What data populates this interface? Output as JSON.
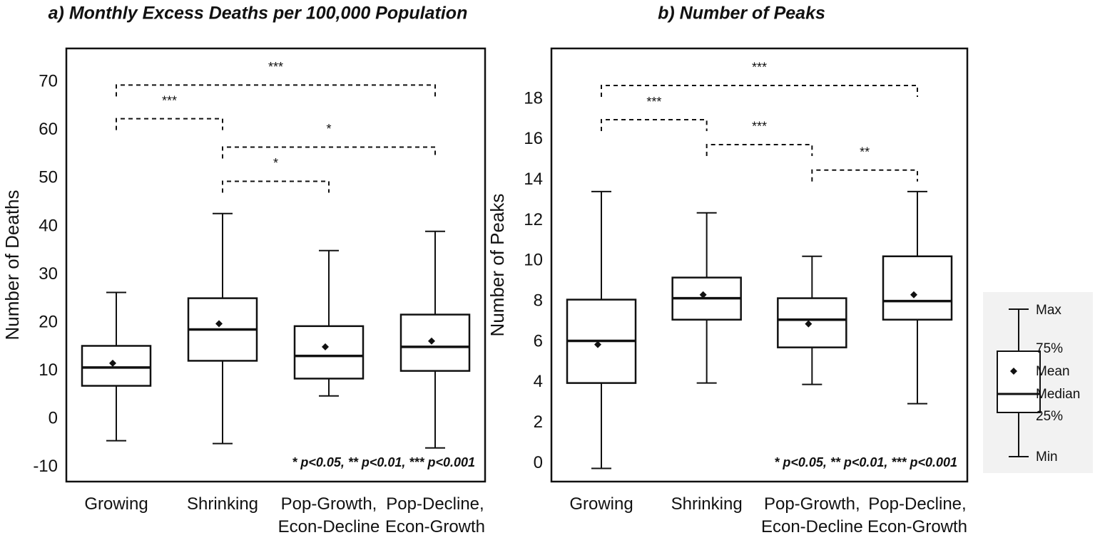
{
  "chart_data": [
    {
      "type": "box",
      "title": "a) Monthly Excess Deaths per 100,000 Population",
      "y_label": "Number of Deaths",
      "categories": [
        "Growing",
        "Shrinking",
        "Pop-Growth,\nEcon-Decline",
        "Pop-Decline,\nEcon-Growth"
      ],
      "boxes": [
        {
          "min": -4.5,
          "q1": 6.9,
          "median": 10.7,
          "q3": 15.2,
          "max": 26.3,
          "mean": 11.6
        },
        {
          "min": -5.1,
          "q1": 12.1,
          "median": 18.6,
          "q3": 25.1,
          "max": 42.7,
          "mean": 19.8
        },
        {
          "min": 4.8,
          "q1": 8.4,
          "median": 13.1,
          "q3": 19.3,
          "max": 35.0,
          "mean": 15.0
        },
        {
          "min": -6.0,
          "q1": 10.0,
          "median": 15.0,
          "q3": 21.7,
          "max": 39.0,
          "mean": 16.2
        }
      ],
      "ylim": [
        -13,
        77
      ],
      "yticks": [
        -10,
        0,
        10,
        20,
        30,
        40,
        50,
        60,
        70
      ],
      "comparisons": [
        {
          "pair": [
            0,
            3
          ],
          "y": 69.4,
          "label": "***"
        },
        {
          "pair": [
            0,
            1
          ],
          "y": 62.4,
          "label": "***"
        },
        {
          "pair": [
            1,
            3
          ],
          "y": 56.5,
          "label": "*"
        },
        {
          "pair": [
            1,
            2
          ],
          "y": 49.4,
          "label": "*"
        }
      ],
      "note": "* p<0.05, ** p<0.01, *** p<0.001"
    },
    {
      "type": "box",
      "title": "b) Number of Peaks",
      "y_label": "Number of Peaks",
      "categories": [
        "Growing",
        "Shrinking",
        "Pop-Growth,\nEcon-Decline",
        "Pop-Decline,\nEcon-Growth"
      ],
      "boxes": [
        {
          "min": -0.25,
          "q1": 3.97,
          "median": 6.05,
          "q3": 8.09,
          "max": 13.43,
          "mean": 5.87
        },
        {
          "min": 3.97,
          "q1": 7.1,
          "median": 8.16,
          "q3": 9.18,
          "max": 12.38,
          "mean": 8.33
        },
        {
          "min": 3.9,
          "q1": 5.73,
          "median": 7.1,
          "q3": 8.16,
          "max": 10.23,
          "mean": 6.89
        },
        {
          "min": 2.95,
          "q1": 7.1,
          "median": 8.02,
          "q3": 10.23,
          "max": 13.43,
          "mean": 8.33
        }
      ],
      "ylim": [
        -0.9,
        20.5
      ],
      "yticks": [
        0,
        2,
        4,
        6,
        8,
        10,
        12,
        14,
        16,
        18
      ],
      "comparisons": [
        {
          "pair": [
            0,
            3
          ],
          "y": 18.67,
          "label": "***"
        },
        {
          "pair": [
            0,
            1
          ],
          "y": 16.98,
          "label": "***"
        },
        {
          "pair": [
            1,
            2
          ],
          "y": 15.75,
          "label": "***"
        },
        {
          "pair": [
            2,
            3
          ],
          "y": 14.49,
          "label": "**"
        }
      ],
      "note": "* p<0.05, ** p<0.01, *** p<0.001"
    }
  ],
  "legend": {
    "max": "Max",
    "q3": "75%",
    "mean": "Mean",
    "median": "Median",
    "q1": "25%",
    "min": "Min"
  }
}
